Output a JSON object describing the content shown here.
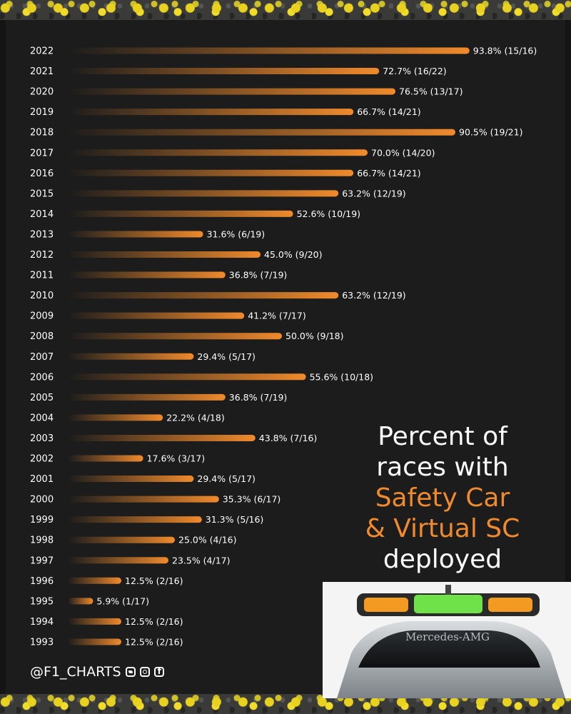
{
  "chart_data": {
    "type": "bar",
    "orientation": "horizontal",
    "title": "Percent of races with Safety Car & Virtual SC deployed",
    "categories": [
      "2022",
      "2021",
      "2020",
      "2019",
      "2018",
      "2017",
      "2016",
      "2015",
      "2014",
      "2013",
      "2012",
      "2011",
      "2010",
      "2009",
      "2008",
      "2007",
      "2006",
      "2005",
      "2004",
      "2003",
      "2002",
      "2001",
      "2000",
      "1999",
      "1998",
      "1997",
      "1996",
      "1995",
      "1994",
      "1993"
    ],
    "values": [
      93.8,
      72.7,
      76.5,
      66.7,
      90.5,
      70.0,
      66.7,
      63.2,
      52.6,
      31.6,
      45.0,
      36.8,
      63.2,
      41.2,
      50.0,
      29.4,
      55.6,
      36.8,
      22.2,
      43.8,
      17.6,
      29.4,
      35.3,
      31.3,
      25.0,
      23.5,
      12.5,
      5.9,
      12.5,
      12.5
    ],
    "data_labels": [
      "93.8% (15/16)",
      "72.7% (16/22)",
      "76.5% (13/17)",
      "66.7% (14/21)",
      "90.5% (19/21)",
      "70.0% (14/20)",
      "66.7% (14/21)",
      "63.2% (12/19)",
      "52.6% (10/19)",
      "31.6% (6/19)",
      "45.0% (9/20)",
      "36.8% (7/19)",
      "63.2% (12/19)",
      "41.2% (7/17)",
      "50.0% (9/18)",
      "29.4% (5/17)",
      "55.6% (10/18)",
      "36.8% (7/19)",
      "22.2% (4/18)",
      "43.8% (7/16)",
      "17.6% (3/17)",
      "29.4% (5/17)",
      "35.3% (6/17)",
      "31.3% (5/16)",
      "25.0% (4/16)",
      "23.5% (4/17)",
      "12.5% (2/16)",
      "5.9% (1/17)",
      "12.5% (2/16)",
      "12.5% (2/16)"
    ],
    "xlim": [
      0,
      100
    ],
    "grid": false,
    "legend": "none",
    "colors": {
      "bar_end": "#f08a2c",
      "bar_start": "#1c1c1c",
      "background": "#1c1c1c",
      "accent": "#f08a2c"
    }
  },
  "title_lines": {
    "line1": "Percent of",
    "line2": "races with",
    "line3": "Safety Car",
    "line4": "& Virtual SC",
    "line5": "deployed"
  },
  "credit": {
    "handle": "@F1_CHARTS",
    "icons": [
      "twitter-icon",
      "instagram-icon",
      "facebook-icon"
    ]
  },
  "car_windshield_text": "Mercedes-AMG"
}
